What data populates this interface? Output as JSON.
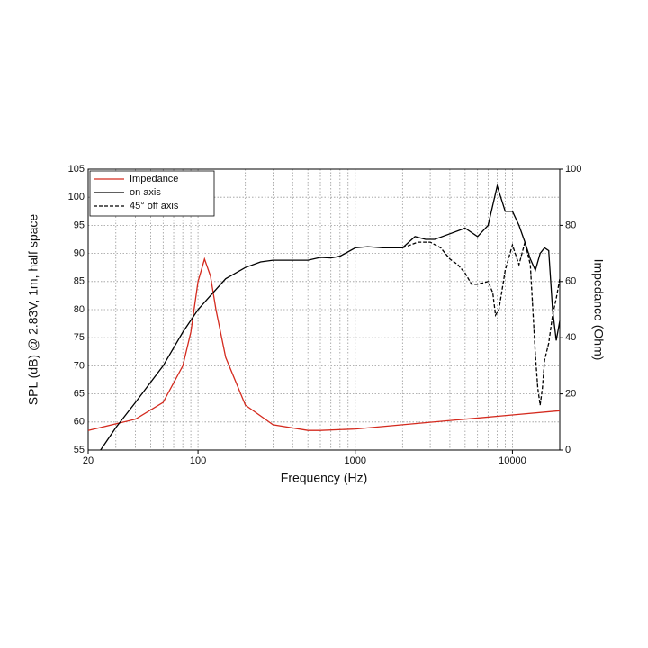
{
  "chart_data": {
    "type": "line",
    "xlabel": "Frequency (Hz)",
    "ylabel": "SPL (dB) @ 2.83V, 1m, half space",
    "y2label": "Impedance (Ohm)",
    "xscale": "log",
    "xlim": [
      20,
      20000
    ],
    "xticks": [
      20,
      100,
      1000,
      10000
    ],
    "xgrid": [
      20,
      30,
      40,
      50,
      60,
      70,
      80,
      90,
      100,
      200,
      300,
      400,
      500,
      600,
      700,
      800,
      900,
      1000,
      2000,
      3000,
      4000,
      5000,
      6000,
      7000,
      8000,
      9000,
      10000,
      20000
    ],
    "ylim": [
      55,
      105
    ],
    "yticks": [
      55,
      60,
      65,
      70,
      75,
      80,
      85,
      90,
      95,
      100,
      105
    ],
    "y2lim": [
      0,
      100
    ],
    "y2ticks": [
      0,
      20,
      40,
      60,
      80,
      100
    ],
    "grid": true,
    "legend": "upper left",
    "series": [
      {
        "name": "Impedance",
        "color": "#d42a1e",
        "style": "solid",
        "axis": "y2",
        "x": [
          20,
          40,
          60,
          80,
          90,
          100,
          110,
          120,
          130,
          150,
          200,
          300,
          500,
          600,
          1000,
          2000,
          5000,
          10000,
          20000
        ],
        "values": [
          7,
          11,
          17,
          30,
          42,
          60,
          68,
          62,
          50,
          33,
          16,
          9,
          7,
          7,
          7.5,
          9,
          11,
          12.5,
          14
        ]
      },
      {
        "name": "on axis",
        "color": "#000000",
        "style": "solid",
        "axis": "y",
        "x": [
          24,
          30,
          40,
          60,
          80,
          100,
          120,
          150,
          200,
          250,
          300,
          400,
          500,
          600,
          700,
          800,
          1000,
          1200,
          1500,
          2000,
          2400,
          2800,
          3200,
          4000,
          5000,
          6000,
          7000,
          8000,
          9000,
          10000,
          11000,
          12000,
          13000,
          14000,
          15000,
          16000,
          17000,
          18000,
          19000,
          20000
        ],
        "values": [
          55,
          59,
          63.5,
          70,
          76,
          80,
          82.5,
          85.5,
          87.5,
          88.5,
          88.8,
          88.8,
          88.8,
          89.3,
          89.2,
          89.5,
          91,
          91.2,
          91,
          91,
          93,
          92.5,
          92.5,
          93.5,
          94.5,
          93,
          95,
          102,
          97.5,
          97.5,
          95,
          92,
          89,
          87,
          90,
          91,
          90.5,
          80,
          74.5,
          78
        ]
      },
      {
        "name": "45° off axis",
        "color": "#000000",
        "style": "dashed",
        "axis": "y",
        "x": [
          2000,
          2500,
          3000,
          3500,
          4000,
          4500,
          5000,
          5500,
          6000,
          7000,
          7500,
          7800,
          8200,
          9000,
          10000,
          11000,
          12000,
          13000,
          14000,
          14500,
          15000,
          15500,
          16000,
          17000,
          18000,
          19000,
          20000
        ],
        "values": [
          91,
          92,
          92,
          91,
          89,
          88,
          86.5,
          84.5,
          84.5,
          85,
          83,
          79,
          80,
          87,
          91.5,
          88,
          92,
          88,
          72,
          66,
          63,
          66,
          71,
          74,
          79,
          82,
          85.5
        ]
      }
    ]
  }
}
